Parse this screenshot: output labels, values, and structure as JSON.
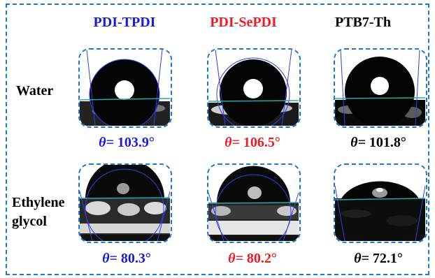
{
  "columns": [
    {
      "label": "PDI-TPDI",
      "color": "#1a1adf"
    },
    {
      "label": "PDI-SePDI",
      "color": "#ec1c24"
    },
    {
      "label": "PTB7-Th",
      "color": "#000000"
    }
  ],
  "rows": [
    {
      "label": "Water"
    },
    {
      "label_line1": "Ethylene",
      "label_line2": "glycol"
    }
  ],
  "angles": {
    "water": [
      "103.9°",
      "106.5°",
      "101.8°"
    ],
    "glycol": [
      "80.3°",
      "80.2°",
      "72.1°"
    ]
  },
  "theta_prefix": "θ= ",
  "colors": {
    "frame": "#1f78c8",
    "baseline": "#2aa9a0",
    "fit_circle": "#3a3ae0",
    "blue": "#1a1adf",
    "red": "#ec1c24",
    "black": "#000000"
  }
}
